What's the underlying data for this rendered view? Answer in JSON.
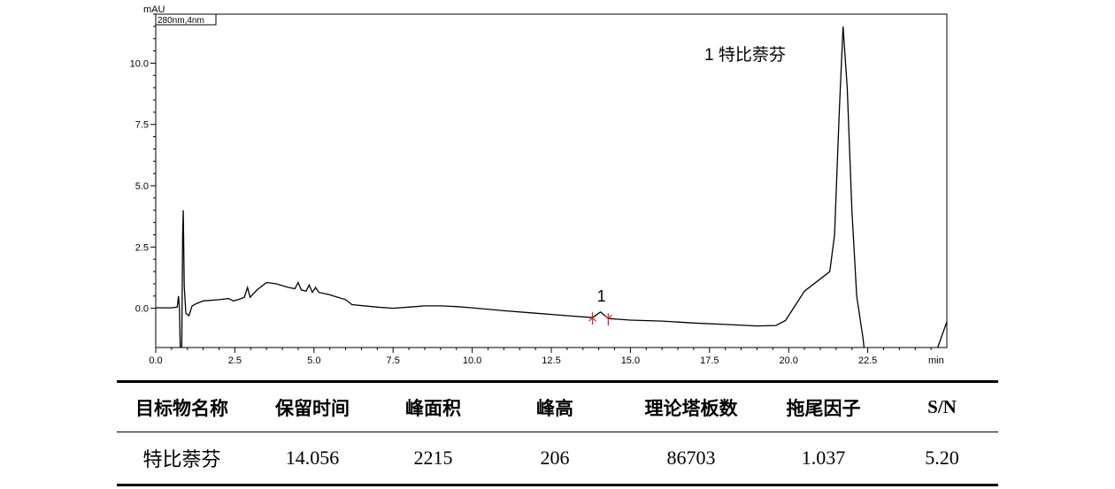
{
  "chart_data": {
    "type": "line",
    "channel_label": "280nm,4nm",
    "ylabel": "mAU",
    "xlabel": "min",
    "xlim": [
      0.0,
      25.0
    ],
    "ylim": [
      -1.6,
      12.0
    ],
    "x_ticks": [
      "0.0",
      "2.5",
      "5.0",
      "7.5",
      "10.0",
      "12.5",
      "15.0",
      "17.5",
      "20.0",
      "22.5"
    ],
    "x_tick_values": [
      0.0,
      2.5,
      5.0,
      7.5,
      10.0,
      12.5,
      15.0,
      17.5,
      20.0,
      22.5
    ],
    "y_ticks": [
      "0.0",
      "2.5",
      "5.0",
      "7.5",
      "10.0"
    ],
    "y_tick_values": [
      0.0,
      2.5,
      5.0,
      7.5,
      10.0
    ],
    "annotation": "1  特比萘芬",
    "peak_label": "1",
    "peak_time": 14.056,
    "series": [
      {
        "points": [
          [
            0.0,
            0.02
          ],
          [
            0.5,
            0.02
          ],
          [
            0.68,
            0.05
          ],
          [
            0.72,
            0.5
          ],
          [
            0.75,
            0.0
          ],
          [
            0.78,
            -2.0
          ],
          [
            0.82,
            -2.0
          ],
          [
            0.85,
            3.0
          ],
          [
            0.87,
            4.0
          ],
          [
            0.9,
            0.9
          ],
          [
            0.95,
            -0.2
          ],
          [
            1.05,
            -0.3
          ],
          [
            1.15,
            0.1
          ],
          [
            1.3,
            0.2
          ],
          [
            1.5,
            0.3
          ],
          [
            2.0,
            0.35
          ],
          [
            2.3,
            0.4
          ],
          [
            2.45,
            0.3
          ],
          [
            2.6,
            0.35
          ],
          [
            2.8,
            0.45
          ],
          [
            2.9,
            0.85
          ],
          [
            2.98,
            0.45
          ],
          [
            3.2,
            0.75
          ],
          [
            3.5,
            1.05
          ],
          [
            3.8,
            1.0
          ],
          [
            4.2,
            0.85
          ],
          [
            4.4,
            0.8
          ],
          [
            4.5,
            1.05
          ],
          [
            4.6,
            0.75
          ],
          [
            4.75,
            0.7
          ],
          [
            4.85,
            0.95
          ],
          [
            4.95,
            0.65
          ],
          [
            5.05,
            0.85
          ],
          [
            5.15,
            0.65
          ],
          [
            5.5,
            0.55
          ],
          [
            6.0,
            0.35
          ],
          [
            6.2,
            0.15
          ],
          [
            7.0,
            0.05
          ],
          [
            7.5,
            0.0
          ],
          [
            8.0,
            0.05
          ],
          [
            8.5,
            0.1
          ],
          [
            9.0,
            0.1
          ],
          [
            9.5,
            0.07
          ],
          [
            10.0,
            0.02
          ],
          [
            11.0,
            -0.1
          ],
          [
            12.0,
            -0.2
          ],
          [
            13.0,
            -0.3
          ],
          [
            13.8,
            -0.38
          ],
          [
            14.056,
            -0.15
          ],
          [
            14.3,
            -0.42
          ],
          [
            15.0,
            -0.48
          ],
          [
            16.0,
            -0.52
          ],
          [
            17.0,
            -0.6
          ],
          [
            18.0,
            -0.66
          ],
          [
            19.0,
            -0.72
          ],
          [
            19.6,
            -0.7
          ],
          [
            19.9,
            -0.5
          ],
          [
            20.2,
            0.1
          ],
          [
            20.5,
            0.7
          ],
          [
            20.9,
            1.1
          ],
          [
            21.3,
            1.5
          ],
          [
            21.45,
            3.0
          ],
          [
            21.6,
            8.0
          ],
          [
            21.72,
            11.5
          ],
          [
            21.85,
            9.0
          ],
          [
            22.0,
            4.0
          ],
          [
            22.15,
            0.5
          ],
          [
            22.35,
            -1.2
          ],
          [
            22.5,
            -3.0
          ],
          [
            24.6,
            -2.0
          ],
          [
            25.0,
            -0.55
          ]
        ]
      }
    ]
  },
  "table": {
    "headers": [
      "目标物名称",
      "保留时间",
      "峰面积",
      "峰高",
      "理论塔板数",
      "拖尾因子",
      "S/N"
    ],
    "rows": [
      [
        "特比萘芬",
        "14.056",
        "2215",
        "206",
        "86703",
        "1.037",
        "5.20"
      ]
    ]
  }
}
